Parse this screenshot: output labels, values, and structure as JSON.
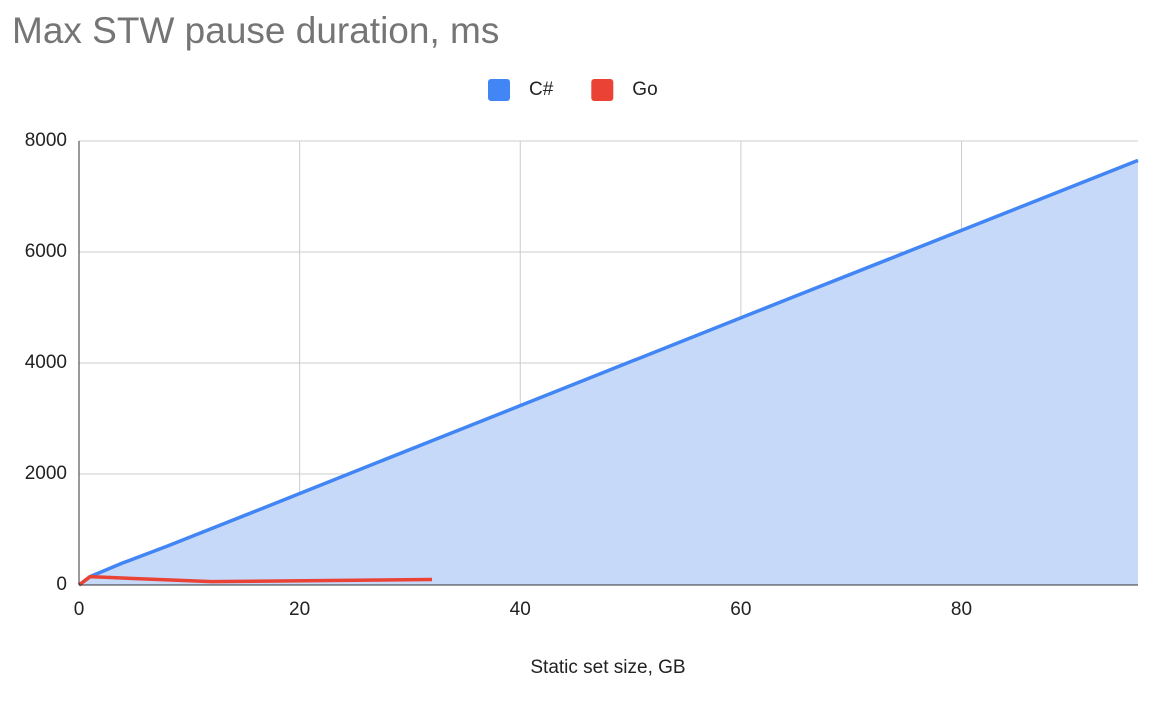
{
  "chart_data": {
    "type": "area",
    "title": "Max STW pause duration, ms",
    "x_label": "Static set size, GB",
    "xlim": [
      0,
      96
    ],
    "xticks": [
      0,
      20,
      40,
      60,
      80
    ],
    "ylim": [
      0,
      8000
    ],
    "yticks": [
      0,
      2000,
      4000,
      6000,
      8000
    ],
    "grid": true,
    "legend": "top",
    "series": [
      {
        "name": "C#",
        "color": "#4285f4",
        "fill": "#c6d9f8",
        "filled": true,
        "x": [
          0,
          1,
          4,
          8,
          16,
          32,
          64,
          96
        ],
        "values": [
          0,
          150,
          400,
          700,
          1330,
          2600,
          5130,
          7650
        ]
      },
      {
        "name": "Go",
        "color": "#ea4335",
        "filled": false,
        "x": [
          0,
          1,
          12,
          32
        ],
        "values": [
          0,
          150,
          60,
          100
        ]
      }
    ]
  }
}
